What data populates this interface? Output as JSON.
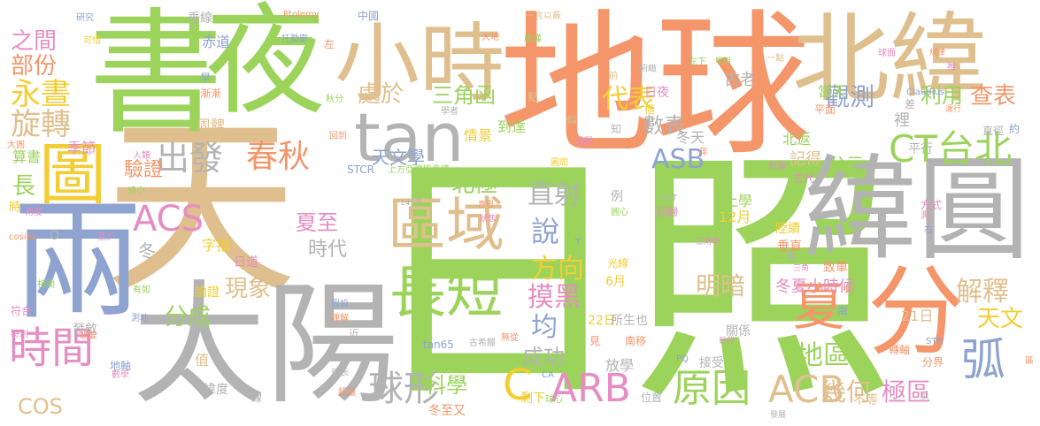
{
  "palette": {
    "green": "#9bd35b",
    "orange": "#f4956a",
    "tan": "#e0bf8e",
    "gray": "#b3b3b3",
    "blue": "#8ea3cf",
    "pink": "#e58ec3",
    "yellow": "#f2cd33"
  },
  "words": [
    {
      "text": "日照",
      "color": "green"
    },
    {
      "text": "天",
      "color": "tan"
    },
    {
      "text": "地球",
      "color": "orange"
    },
    {
      "text": "太陽",
      "color": "gray"
    },
    {
      "text": "書",
      "color": "green"
    },
    {
      "text": "夜",
      "color": "green"
    },
    {
      "text": "北緯",
      "color": "tan"
    },
    {
      "text": "緯圓",
      "color": "gray"
    },
    {
      "text": "兩",
      "color": "blue"
    },
    {
      "text": "分",
      "color": "orange"
    },
    {
      "text": "小時",
      "color": "tan"
    },
    {
      "text": "tan",
      "color": "gray"
    },
    {
      "text": "區域",
      "color": "tan"
    },
    {
      "text": "長短",
      "color": "green"
    },
    {
      "text": "圖",
      "color": "yellow"
    },
    {
      "text": "出發",
      "color": "gray"
    },
    {
      "text": "春秋",
      "color": "orange"
    },
    {
      "text": "CT台北",
      "color": "green"
    },
    {
      "text": "夏",
      "color": "orange"
    },
    {
      "text": "弧",
      "color": "blue"
    },
    {
      "text": "時間",
      "color": "pink"
    },
    {
      "text": "ARB",
      "color": "pink"
    },
    {
      "text": "原因",
      "color": "green"
    },
    {
      "text": "ACB",
      "color": "tan"
    },
    {
      "text": "C",
      "color": "yellow"
    },
    {
      "text": "球形",
      "color": "gray"
    },
    {
      "text": "ACS",
      "color": "pink"
    },
    {
      "text": "永晝",
      "color": "yellow"
    },
    {
      "text": "旋轉",
      "color": "tan"
    },
    {
      "text": "部份",
      "color": "orange"
    },
    {
      "text": "之間",
      "color": "pink"
    },
    {
      "text": "處於",
      "color": "tan"
    },
    {
      "text": "三角函",
      "color": "green"
    },
    {
      "text": "代表",
      "color": "yellow"
    },
    {
      "text": "觀測",
      "color": "blue"
    },
    {
      "text": "利用",
      "color": "green"
    },
    {
      "text": "查表",
      "color": "orange"
    },
    {
      "text": "數表",
      "color": "gray"
    },
    {
      "text": "天文學",
      "color": "blue"
    },
    {
      "text": "北極",
      "color": "green"
    },
    {
      "text": "ASB",
      "color": "blue"
    },
    {
      "text": "直射",
      "color": "gray"
    },
    {
      "text": "說",
      "color": "blue"
    },
    {
      "text": "方向",
      "color": "yellow"
    },
    {
      "text": "摸黑",
      "color": "pink"
    },
    {
      "text": "明暗",
      "color": "tan"
    },
    {
      "text": "現象",
      "color": "tan"
    },
    {
      "text": "分成",
      "color": "green"
    },
    {
      "text": "夏至",
      "color": "pink"
    },
    {
      "text": "時代",
      "color": "gray"
    },
    {
      "text": "解釋",
      "color": "tan"
    },
    {
      "text": "天文",
      "color": "yellow"
    },
    {
      "text": "地區",
      "color": "green"
    },
    {
      "text": "幾何",
      "color": "tan"
    },
    {
      "text": "極區",
      "color": "pink"
    },
    {
      "text": "科學",
      "color": "green"
    },
    {
      "text": "成功",
      "color": "gray"
    },
    {
      "text": "均",
      "color": "blue"
    },
    {
      "text": "驗證",
      "color": "orange"
    },
    {
      "text": "長",
      "color": "green"
    },
    {
      "text": "COS",
      "color": "tan"
    },
    {
      "text": "公元",
      "color": "green"
    },
    {
      "text": "記得",
      "color": "tan"
    },
    {
      "text": "冬夏",
      "color": "pink"
    },
    {
      "text": "小時候",
      "color": "pink"
    },
    {
      "text": "上學",
      "color": "green"
    },
    {
      "text": "12月",
      "color": "yellow"
    },
    {
      "text": "6月",
      "color": "yellow"
    },
    {
      "text": "22日",
      "color": "yellow"
    },
    {
      "text": "21日",
      "color": "tan"
    },
    {
      "text": "字指",
      "color": "yellow"
    },
    {
      "text": "日道",
      "color": "pink"
    },
    {
      "text": "冬",
      "color": "gray"
    },
    {
      "text": "季節",
      "color": "pink"
    },
    {
      "text": "周髀",
      "color": "tan"
    },
    {
      "text": "赤道",
      "color": "blue"
    },
    {
      "text": "古老",
      "color": "gray"
    },
    {
      "text": "裡",
      "color": "gray"
    },
    {
      "text": "當天",
      "color": "green"
    },
    {
      "text": "北返",
      "color": "green"
    },
    {
      "text": "到達",
      "color": "green"
    },
    {
      "text": "情景",
      "color": "yellow"
    },
    {
      "text": "冬天",
      "color": "gray"
    },
    {
      "text": "日夜",
      "color": "pink"
    },
    {
      "text": "中國",
      "color": "blue"
    },
    {
      "text": "垂線",
      "color": "gray"
    },
    {
      "text": "算書",
      "color": "green"
    },
    {
      "text": "論證",
      "color": "yellow"
    },
    {
      "text": "值",
      "color": "tan"
    },
    {
      "text": "發斂",
      "color": "gray"
    },
    {
      "text": "緯度",
      "color": "gray"
    },
    {
      "text": "地軸",
      "color": "blue"
    },
    {
      "text": "放學",
      "color": "gray"
    },
    {
      "text": "冬至又",
      "color": "orange"
    },
    {
      "text": "所生也",
      "color": "gray"
    },
    {
      "text": "南移",
      "color": "orange"
    },
    {
      "text": "關係",
      "color": "gray"
    },
    {
      "text": "接受",
      "color": "gray"
    },
    {
      "text": "不等",
      "color": "tan"
    },
    {
      "text": "轉軸",
      "color": "orange"
    },
    {
      "text": "分界",
      "color": "orange"
    },
    {
      "text": "光線",
      "color": "yellow"
    },
    {
      "text": "回歸",
      "color": "pink"
    },
    {
      "text": "垂直",
      "color": "orange"
    },
    {
      "text": "致車",
      "color": "orange"
    },
    {
      "text": "陸續",
      "color": "yellow"
    },
    {
      "text": "平行",
      "color": "gray"
    },
    {
      "text": "直徑",
      "color": "gray"
    },
    {
      "text": "約",
      "color": "blue"
    },
    {
      "text": "差",
      "color": "gray"
    },
    {
      "text": "平面",
      "color": "orange"
    },
    {
      "text": "古代",
      "color": "pink"
    },
    {
      "text": "航海",
      "color": "pink"
    },
    {
      "text": "方式",
      "color": "pink"
    },
    {
      "text": "Claudius",
      "color": "blue"
    },
    {
      "text": "Ptolemy",
      "color": "orange"
    },
    {
      "text": "研究",
      "color": "blue"
    },
    {
      "text": "可惜",
      "color": "yellow"
    },
    {
      "text": "托勒密",
      "color": "blue"
    },
    {
      "text": "左",
      "color": "orange"
    },
    {
      "text": "早",
      "color": "blue"
    },
    {
      "text": "漸漸",
      "color": "orange"
    },
    {
      "text": "秋分",
      "color": "green"
    },
    {
      "text": "回到",
      "color": "orange"
    },
    {
      "text": "大圓",
      "color": "orange"
    },
    {
      "text": "人類",
      "color": "pink"
    },
    {
      "text": "縮小",
      "color": "green"
    },
    {
      "text": "角度",
      "color": "pink"
    },
    {
      "text": "時",
      "color": "yellow"
    },
    {
      "text": "cosine",
      "color": "orange"
    },
    {
      "text": "O",
      "color": "gray"
    },
    {
      "text": "至少",
      "color": "pink"
    },
    {
      "text": "有如",
      "color": "green"
    },
    {
      "text": "符合",
      "color": "pink"
    },
    {
      "text": "相關",
      "color": "green"
    },
    {
      "text": "特別",
      "color": "pink"
    },
    {
      "text": "數學",
      "color": "pink"
    },
    {
      "text": "想要",
      "color": "orange"
    },
    {
      "text": "測地",
      "color": "blue"
    },
    {
      "text": "假設",
      "color": "blue"
    },
    {
      "text": "理解",
      "color": "orange"
    },
    {
      "text": "近",
      "color": "gray"
    },
    {
      "text": "建表",
      "color": "gray"
    },
    {
      "text": "超越",
      "color": "orange"
    },
    {
      "text": "線",
      "color": "gray"
    },
    {
      "text": "tan65",
      "color": "blue"
    },
    {
      "text": "古希臘",
      "color": "gray"
    },
    {
      "text": "145年",
      "color": "gray"
    },
    {
      "text": "STCR",
      "color": "blue"
    },
    {
      "text": "上方亞里斯多德",
      "color": "green"
    },
    {
      "text": "學者",
      "color": "gray"
    },
    {
      "text": "一言以蔽",
      "color": "tan"
    },
    {
      "text": "大地",
      "color": "orange"
    },
    {
      "text": "嚴謹",
      "color": "green"
    },
    {
      "text": "點",
      "color": "tan"
    },
    {
      "text": "前",
      "color": "tan"
    },
    {
      "text": "俯瞰",
      "color": "gray"
    },
    {
      "text": "左下",
      "color": "green"
    },
    {
      "text": "學用",
      "color": "green"
    },
    {
      "text": "一點",
      "color": "tan"
    },
    {
      "text": "球面",
      "color": "pink"
    },
    {
      "text": "規律",
      "color": "orange"
    },
    {
      "text": "推",
      "color": "pink"
    },
    {
      "text": "運行",
      "color": "orange"
    },
    {
      "text": "似",
      "color": "tan"
    },
    {
      "text": "知",
      "color": "gray"
    },
    {
      "text": "極",
      "color": "yellow"
    },
    {
      "text": "過程",
      "color": "pink"
    },
    {
      "text": "年",
      "color": "orange"
    },
    {
      "text": "意思",
      "color": "orange"
    },
    {
      "text": "狀態",
      "color": "pink"
    },
    {
      "text": "例",
      "color": "gray"
    },
    {
      "text": "圓心",
      "color": "green"
    },
    {
      "text": "COT",
      "color": "gray"
    },
    {
      "text": "三角學",
      "color": "pink"
    },
    {
      "text": "T",
      "color": "blue"
    },
    {
      "text": "無從",
      "color": "orange"
    },
    {
      "text": "見",
      "color": "orange"
    },
    {
      "text": "北",
      "color": "green"
    },
    {
      "text": "目的",
      "color": "pink"
    },
    {
      "text": "PQ",
      "color": "blue"
    },
    {
      "text": "剩下",
      "color": "yellow"
    },
    {
      "text": "CA",
      "color": "blue"
    },
    {
      "text": "球心",
      "color": "green"
    },
    {
      "text": "位置",
      "color": "gray"
    },
    {
      "text": "發展",
      "color": "gray"
    },
    {
      "text": "反",
      "color": "gray"
    },
    {
      "text": "區",
      "color": "orange"
    },
    {
      "text": "STR",
      "color": "blue"
    },
    {
      "text": "南",
      "color": "blue"
    },
    {
      "text": "中",
      "color": "orange"
    },
    {
      "text": "三角",
      "color": "pink"
    },
    {
      "text": "做",
      "color": "gray"
    },
    {
      "text": "右",
      "color": "blue"
    },
    {
      "text": "測",
      "color": "pink"
    },
    {
      "text": "圖周",
      "color": "yellow"
    }
  ]
}
